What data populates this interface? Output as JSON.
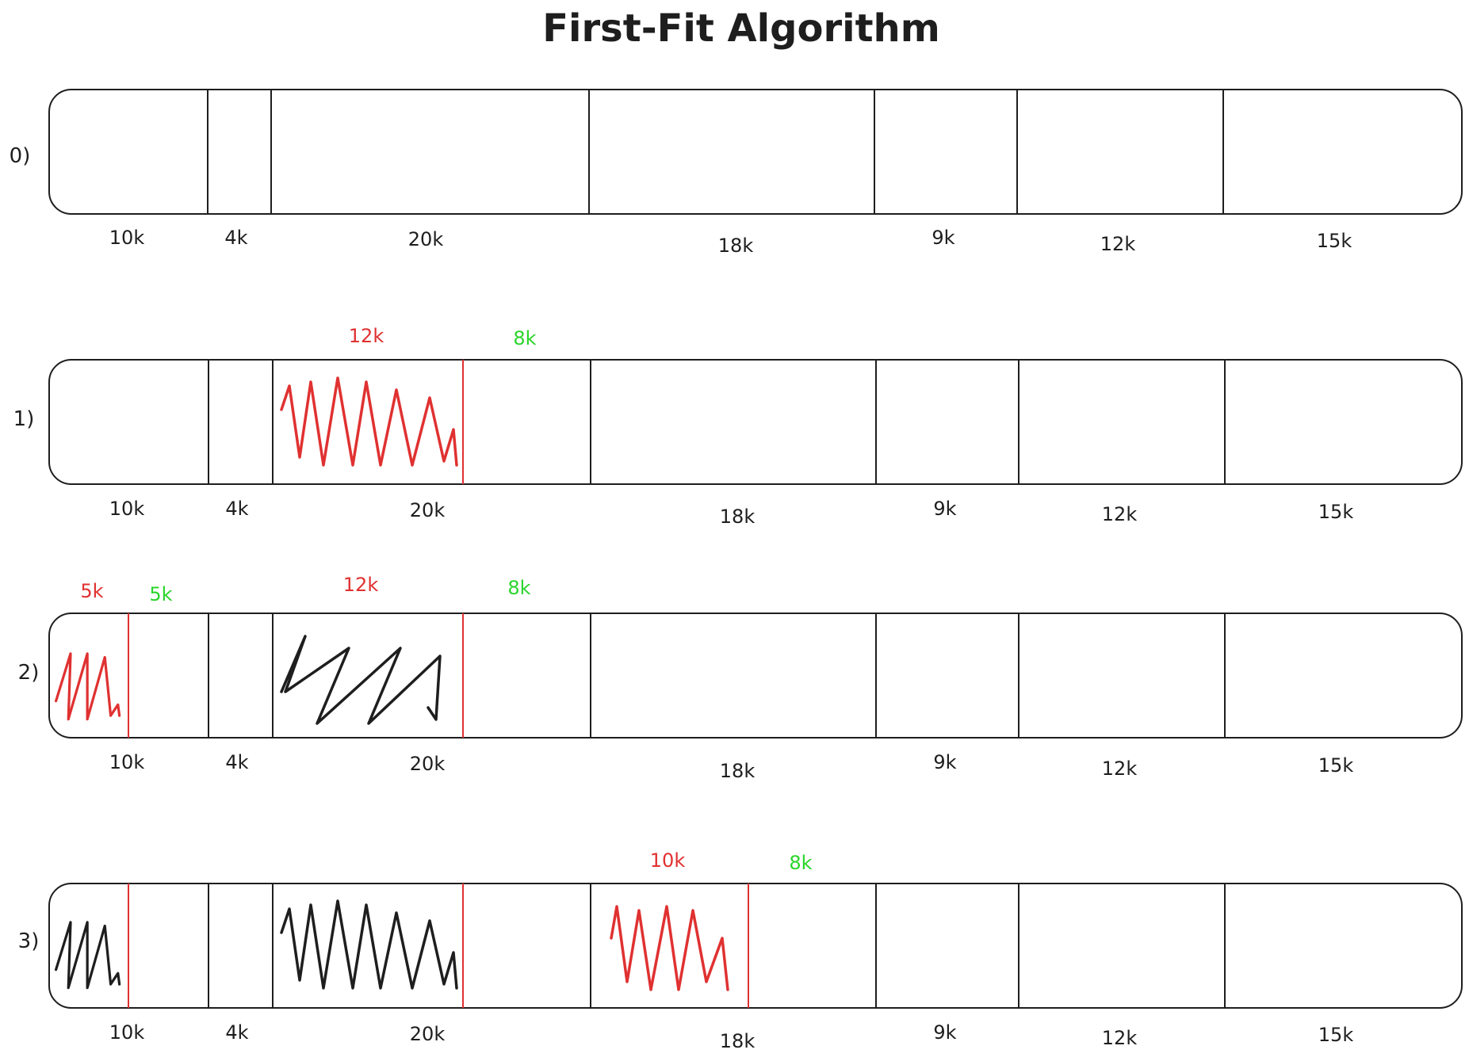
{
  "title": "First-Fit Algorithm",
  "colors": {
    "ink": "#1e1e1e",
    "allocated": "#e03131",
    "remaining": "#2bd52b"
  },
  "partition_sizes": [
    "10k",
    "4k",
    "20k",
    "18k",
    "9k",
    "12k",
    "15k"
  ],
  "rows": [
    {
      "label": "0)",
      "sizes": [
        "10k",
        "4k",
        "20k",
        "18k",
        "9k",
        "12k",
        "15k"
      ],
      "annotations": []
    },
    {
      "label": "1)",
      "sizes": [
        "10k",
        "4k",
        "20k",
        "18k",
        "9k",
        "12k",
        "15k"
      ],
      "annotations": [
        {
          "text": "12k",
          "kind": "allocated"
        },
        {
          "text": "8k",
          "kind": "remaining"
        }
      ]
    },
    {
      "label": "2)",
      "sizes": [
        "10k",
        "4k",
        "20k",
        "18k",
        "9k",
        "12k",
        "15k"
      ],
      "annotations": [
        {
          "text": "5k",
          "kind": "allocated"
        },
        {
          "text": "5k",
          "kind": "remaining"
        },
        {
          "text": "12k",
          "kind": "allocated"
        },
        {
          "text": "8k",
          "kind": "remaining"
        }
      ]
    },
    {
      "label": "3)",
      "sizes": [
        "10k",
        "4k",
        "20k",
        "18k",
        "9k",
        "12k",
        "15k"
      ],
      "annotations": [
        {
          "text": "10k",
          "kind": "allocated"
        },
        {
          "text": "8k",
          "kind": "remaining"
        }
      ]
    }
  ]
}
